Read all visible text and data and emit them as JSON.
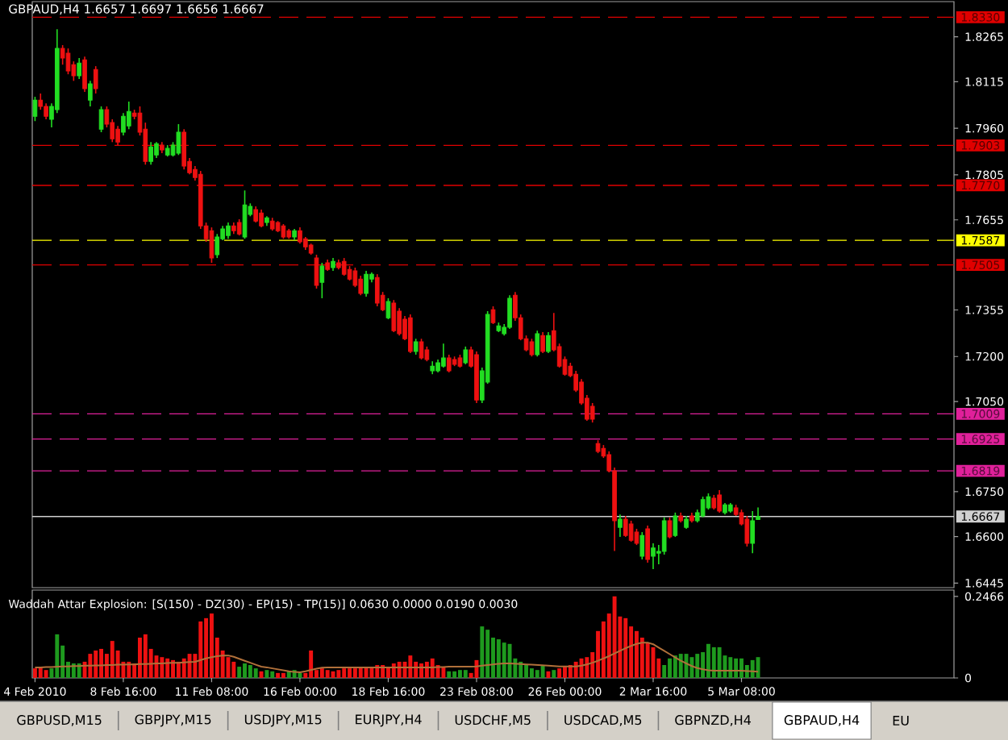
{
  "chart_data": [
    {
      "type": "candlestick",
      "title": "GBPAUD,H4 1.6657 1.6697 1.6656 1.6667",
      "categories": [
        null,
        null,
        null,
        null,
        null,
        null,
        null,
        null,
        null,
        null,
        null,
        null,
        null,
        null,
        null,
        null,
        null,
        null,
        null,
        null,
        null,
        null,
        null,
        null,
        null,
        null,
        null,
        null,
        null,
        null,
        null,
        null,
        null,
        null,
        null,
        null,
        null,
        null,
        null,
        null,
        null,
        null,
        null,
        null,
        null,
        null,
        null,
        null,
        null,
        null,
        null,
        null,
        null,
        null,
        null,
        null,
        null,
        null,
        null,
        null,
        null,
        null,
        null,
        null,
        null,
        null,
        null,
        null,
        null,
        null,
        null,
        null,
        null,
        null,
        null,
        null,
        null,
        null,
        null,
        null,
        null,
        null,
        null,
        null,
        null,
        null,
        null,
        null,
        null,
        null,
        null,
        null,
        null,
        null,
        null,
        null,
        null,
        null,
        null,
        null,
        null,
        null,
        null,
        null,
        null,
        null,
        null,
        null,
        null,
        null,
        null,
        null,
        null,
        null,
        null,
        null,
        null,
        null,
        null,
        null,
        null,
        null,
        null,
        null,
        null,
        null,
        null,
        null,
        null,
        null,
        null,
        null,
        null,
        null,
        null,
        null,
        null,
        null,
        null,
        null,
        null,
        null,
        null,
        null,
        null,
        null,
        null,
        null,
        null,
        null,
        null,
        null,
        null,
        null,
        null,
        null,
        null,
        null,
        null,
        null,
        null,
        null,
        null,
        null,
        null,
        null,
        null
      ],
      "ohlc": [
        [
          1.8,
          1.8065,
          1.7984,
          1.8054
        ],
        [
          1.8054,
          1.8076,
          1.8022,
          1.8033
        ],
        [
          1.8033,
          1.8043,
          1.799,
          1.8
        ],
        [
          1.799,
          1.8043,
          1.7963,
          1.8033
        ],
        [
          1.8022,
          1.829,
          1.8011,
          1.8226
        ],
        [
          1.8226,
          1.8237,
          1.8172,
          1.8194
        ],
        [
          1.821,
          1.8226,
          1.814,
          1.8151
        ],
        [
          1.8172,
          1.8183,
          1.8118,
          1.8135
        ],
        [
          1.8135,
          1.8194,
          1.8124,
          1.8177
        ],
        [
          1.8188,
          1.8199,
          1.8081,
          1.8092
        ],
        [
          1.8054,
          1.8118,
          1.8033,
          1.8108
        ],
        [
          1.8156,
          1.8167,
          1.8076,
          1.8092
        ],
        [
          1.7957,
          1.8033,
          1.7947,
          1.8022
        ],
        [
          1.8022,
          1.8033,
          1.7963,
          1.7974
        ],
        [
          1.7979,
          1.799,
          1.7914,
          1.7925
        ],
        [
          1.7957,
          1.7968,
          1.7904,
          1.7914
        ],
        [
          1.7947,
          1.8011,
          1.7936,
          1.8
        ],
        [
          1.7968,
          1.8049,
          1.7957,
          1.8016
        ],
        [
          1.8011,
          1.8022,
          1.799,
          1.8
        ],
        [
          1.8011,
          1.8033,
          1.7936,
          1.7947
        ],
        [
          1.7957,
          1.7979,
          1.7839,
          1.785
        ],
        [
          1.785,
          1.7914,
          1.7839,
          1.7898
        ],
        [
          1.7871,
          1.7914,
          1.7861,
          1.7909
        ],
        [
          1.7904,
          1.7914,
          1.7877,
          1.7888
        ],
        [
          1.7871,
          1.7904,
          1.7866,
          1.7893
        ],
        [
          1.7871,
          1.7914,
          1.7866,
          1.7904
        ],
        [
          1.7877,
          1.7974,
          1.7871,
          1.7947
        ],
        [
          1.7947,
          1.7957,
          1.7823,
          1.7834
        ],
        [
          1.785,
          1.7861,
          1.7807,
          1.7812
        ],
        [
          1.7823,
          1.7834,
          1.7786,
          1.7796
        ],
        [
          1.7807,
          1.7818,
          1.7625,
          1.7635
        ],
        [
          1.7635,
          1.7646,
          1.7582,
          1.7592
        ],
        [
          1.7619,
          1.763,
          1.7512,
          1.7528
        ],
        [
          1.7539,
          1.7608,
          1.7528,
          1.7598
        ],
        [
          1.7592,
          1.7635,
          1.7587,
          1.7625
        ],
        [
          1.7603,
          1.7646,
          1.7592,
          1.7635
        ],
        [
          1.7635,
          1.7646,
          1.7608,
          1.7619
        ],
        [
          1.7646,
          1.7657,
          1.7603,
          1.7608
        ],
        [
          1.7598,
          1.7753,
          1.7592,
          1.7705
        ],
        [
          1.7673,
          1.771,
          1.7667,
          1.77
        ],
        [
          1.7689,
          1.77,
          1.7646,
          1.7651
        ],
        [
          1.7678,
          1.7689,
          1.763,
          1.7635
        ],
        [
          1.7646,
          1.7667,
          1.7635,
          1.7662
        ],
        [
          1.7651,
          1.7662,
          1.7619,
          1.7625
        ],
        [
          1.7646,
          1.7651,
          1.7614,
          1.7619
        ],
        [
          1.7635,
          1.7641,
          1.7592,
          1.7598
        ],
        [
          1.7619,
          1.7625,
          1.7592,
          1.7598
        ],
        [
          1.7598,
          1.7625,
          1.7587,
          1.7619
        ],
        [
          1.7619,
          1.763,
          1.7576,
          1.7582
        ],
        [
          1.7592,
          1.7598,
          1.7555,
          1.7565
        ],
        [
          1.7571,
          1.7576,
          1.7539,
          1.7544
        ],
        [
          1.7528,
          1.7539,
          1.7426,
          1.7437
        ],
        [
          1.7447,
          1.7512,
          1.7394,
          1.7501
        ],
        [
          1.7512,
          1.7523,
          1.7485,
          1.749
        ],
        [
          1.7496,
          1.7528,
          1.7485,
          1.7517
        ],
        [
          1.7512,
          1.7523,
          1.749,
          1.7496
        ],
        [
          1.7517,
          1.7528,
          1.7469,
          1.7474
        ],
        [
          1.749,
          1.7501,
          1.7453,
          1.7458
        ],
        [
          1.7485,
          1.7496,
          1.7431,
          1.7437
        ],
        [
          1.7458,
          1.7469,
          1.7404,
          1.741
        ],
        [
          1.741,
          1.7485,
          1.7399,
          1.7474
        ],
        [
          1.7458,
          1.748,
          1.7447,
          1.7474
        ],
        [
          1.7463,
          1.7474,
          1.7367,
          1.7378
        ],
        [
          1.7404,
          1.7415,
          1.7351,
          1.7356
        ],
        [
          1.7329,
          1.7394,
          1.7324,
          1.7383
        ],
        [
          1.7378,
          1.7388,
          1.7281,
          1.7286
        ],
        [
          1.7351,
          1.7361,
          1.727,
          1.7276
        ],
        [
          1.7324,
          1.7335,
          1.7254,
          1.7259
        ],
        [
          1.7329,
          1.734,
          1.7211,
          1.7217
        ],
        [
          1.7217,
          1.7259,
          1.7206,
          1.7249
        ],
        [
          1.7249,
          1.7259,
          1.719,
          1.7195
        ],
        [
          1.7222,
          1.7233,
          1.7184,
          1.719
        ],
        [
          1.7152,
          1.7184,
          1.7141,
          1.7168
        ],
        [
          1.7152,
          1.719,
          1.7147,
          1.7179
        ],
        [
          1.7168,
          1.7243,
          1.7163,
          1.7195
        ],
        [
          1.7195,
          1.7206,
          1.7147,
          1.7152
        ],
        [
          1.719,
          1.72,
          1.7168,
          1.7174
        ],
        [
          1.7195,
          1.7206,
          1.7163,
          1.7168
        ],
        [
          1.7179,
          1.7233,
          1.7174,
          1.7222
        ],
        [
          1.7222,
          1.7233,
          1.7163,
          1.7168
        ],
        [
          1.7206,
          1.7217,
          1.7045,
          1.7055
        ],
        [
          1.7055,
          1.7163,
          1.7045,
          1.7152
        ],
        [
          1.7115,
          1.7351,
          1.7109,
          1.734
        ],
        [
          1.7356,
          1.7367,
          1.7308,
          1.7313
        ],
        [
          1.7286,
          1.7313,
          1.7281,
          1.7302
        ],
        [
          1.7276,
          1.7308,
          1.727,
          1.7297
        ],
        [
          1.7297,
          1.7404,
          1.7292,
          1.7394
        ],
        [
          1.7404,
          1.7415,
          1.7319,
          1.7329
        ],
        [
          1.7329,
          1.734,
          1.7254,
          1.7259
        ],
        [
          1.7259,
          1.727,
          1.7217,
          1.7222
        ],
        [
          1.7249,
          1.7259,
          1.72,
          1.7206
        ],
        [
          1.7206,
          1.7286,
          1.72,
          1.7276
        ],
        [
          1.727,
          1.7281,
          1.7211,
          1.7217
        ],
        [
          1.7217,
          1.7281,
          1.7211,
          1.727
        ],
        [
          1.7286,
          1.7345,
          1.7217,
          1.7222
        ],
        [
          1.7233,
          1.7243,
          1.7163,
          1.7168
        ],
        [
          1.719,
          1.72,
          1.7136,
          1.7141
        ],
        [
          1.7168,
          1.7179,
          1.7131,
          1.7136
        ],
        [
          1.7141,
          1.7152,
          1.7082,
          1.7088
        ],
        [
          1.7115,
          1.7125,
          1.7039,
          1.7045
        ],
        [
          1.7061,
          1.7072,
          1.6986,
          1.6991
        ],
        [
          1.7034,
          1.7045,
          1.698,
          1.6991
        ],
        [
          1.691,
          1.6921,
          1.6878,
          1.6884
        ],
        [
          1.6894,
          1.6905,
          1.6862,
          1.6868
        ],
        [
          1.6873,
          1.6884,
          1.6814,
          1.6819
        ],
        [
          1.6819,
          1.683,
          1.6552,
          1.6653
        ],
        [
          1.6631,
          1.6674,
          1.6599,
          1.6658
        ],
        [
          1.6658,
          1.6669,
          1.6599,
          1.6604
        ],
        [
          1.6642,
          1.6653,
          1.6583,
          1.6588
        ],
        [
          1.6615,
          1.6626,
          1.6572,
          1.6578
        ],
        [
          1.6535,
          1.6615,
          1.6524,
          1.6604
        ],
        [
          1.6626,
          1.6637,
          1.6513,
          1.6524
        ],
        [
          1.6535,
          1.6578,
          1.6492,
          1.6562
        ],
        [
          1.6545,
          1.6572,
          1.6508,
          1.6551
        ],
        [
          1.6551,
          1.6664,
          1.654,
          1.6653
        ],
        [
          1.6653,
          1.6664,
          1.6594,
          1.6599
        ],
        [
          1.6604,
          1.668,
          1.6599,
          1.6669
        ],
        [
          1.6669,
          1.668,
          1.6647,
          1.6653
        ],
        [
          1.6631,
          1.6669,
          1.6626,
          1.6658
        ],
        [
          1.6669,
          1.668,
          1.6647,
          1.6653
        ],
        [
          1.6653,
          1.669,
          1.6647,
          1.668
        ],
        [
          1.6669,
          1.6733,
          1.6664,
          1.6723
        ],
        [
          1.6696,
          1.6744,
          1.669,
          1.6733
        ],
        [
          1.6728,
          1.6739,
          1.669,
          1.6696
        ],
        [
          1.6739,
          1.6755,
          1.668,
          1.6685
        ],
        [
          1.668,
          1.6712,
          1.6674,
          1.6706
        ],
        [
          1.6685,
          1.6712,
          1.668,
          1.6706
        ],
        [
          1.6696,
          1.6706,
          1.6669,
          1.6674
        ],
        [
          1.668,
          1.669,
          1.6637,
          1.6642
        ],
        [
          1.6658,
          1.6669,
          1.6567,
          1.6578
        ],
        [
          1.6578,
          1.6685,
          1.6545,
          1.6653
        ],
        [
          1.6657,
          1.6697,
          1.6656,
          1.6667
        ],
        null,
        null,
        null,
        null,
        null,
        null,
        null,
        null,
        null,
        null,
        null,
        null,
        null,
        null,
        null,
        null,
        null,
        null,
        null,
        null,
        null,
        null,
        null,
        null,
        null,
        null,
        null,
        null,
        null,
        null,
        null,
        null,
        null,
        null,
        null
      ],
      "colors": [
        "#22dd22",
        "#ee1111",
        "#ee1111",
        "#22dd22",
        "#22dd22",
        "#ee1111",
        "#ee1111",
        "#ee1111",
        "#22dd22",
        "#ee1111",
        "#22dd22",
        "#ee1111",
        "#22dd22",
        "#ee1111",
        "#ee1111",
        "#ee1111",
        "#22dd22",
        "#22dd22",
        "#ee1111",
        "#ee1111",
        "#ee1111",
        "#22dd22",
        "#22dd22",
        "#ee1111",
        "#22dd22",
        "#22dd22",
        "#22dd22",
        "#ee1111",
        "#ee1111",
        "#ee1111",
        "#ee1111",
        "#ee1111",
        "#ee1111",
        "#22dd22",
        "#22dd22",
        "#22dd22",
        "#ee1111",
        "#ee1111",
        "#22dd22",
        "#22dd22",
        "#ee1111",
        "#ee1111",
        "#22dd22",
        "#ee1111",
        "#ee1111",
        "#ee1111",
        "#ee1111",
        "#22dd22",
        "#ee1111",
        "#ee1111",
        "#ee1111",
        "#ee1111",
        "#22dd22",
        "#ee1111",
        "#22dd22",
        "#ee1111",
        "#ee1111",
        "#ee1111",
        "#ee1111",
        "#ee1111",
        "#22dd22",
        "#22dd22",
        "#ee1111",
        "#ee1111",
        "#22dd22",
        "#ee1111",
        "#ee1111",
        "#ee1111",
        "#ee1111",
        "#22dd22",
        "#ee1111",
        "#ee1111",
        "#22dd22",
        "#22dd22",
        "#22dd22",
        "#ee1111",
        "#ee1111",
        "#ee1111",
        "#22dd22",
        "#ee1111",
        "#ee1111",
        "#22dd22",
        "#22dd22",
        "#ee1111",
        "#22dd22",
        "#22dd22",
        "#22dd22",
        "#ee1111",
        "#ee1111",
        "#ee1111",
        "#ee1111",
        "#22dd22",
        "#ee1111",
        "#22dd22",
        "#ee1111",
        "#ee1111",
        "#ee1111",
        "#ee1111",
        "#ee1111",
        "#ee1111",
        "#ee1111",
        "#ee1111",
        "#ee1111",
        "#ee1111",
        "#ee1111",
        "#ee1111",
        "#22dd22",
        "#ee1111",
        "#ee1111",
        "#ee1111",
        "#22dd22",
        "#ee1111",
        "#22dd22",
        "#22dd22",
        "#22dd22",
        "#ee1111",
        "#22dd22",
        "#ee1111",
        "#22dd22",
        "#ee1111",
        "#22dd22",
        "#22dd22",
        "#22dd22",
        "#ee1111",
        "#ee1111",
        "#22dd22",
        "#22dd22",
        "#ee1111",
        "#ee1111",
        "#ee1111",
        "#22dd22",
        "#22dd22",
        null,
        null,
        null,
        null,
        null,
        null,
        null,
        null,
        null,
        null,
        null,
        null,
        null,
        null,
        null,
        null,
        null,
        null,
        null,
        null,
        null,
        null,
        null,
        null,
        null,
        null,
        null,
        null,
        null,
        null,
        null,
        null,
        null,
        null,
        null
      ],
      "ylim": [
        1.643,
        1.8382
      ],
      "yticks": [
        1.8265,
        1.8115,
        {
          "value": 1.796,
          "label": "1.7960"
        },
        1.7805,
        1.7655,
        1.7355,
        {
          "value": 1.72,
          "label": "1.7200"
        },
        {
          "value": 1.705,
          "label": "1.7050"
        },
        {
          "value": 1.675,
          "label": "1.6750"
        },
        {
          "value": 1.66,
          "label": "1.6600"
        },
        1.6445
      ],
      "tick_labels": "y",
      "ref_lines": [
        {
          "axis": "y",
          "value": 1.833,
          "label": "1.8330",
          "color": "#e00000",
          "line_style": "dashed"
        },
        {
          "axis": "y",
          "value": 1.7903,
          "label": "1.7903",
          "color": "#e00000",
          "line_style": "dashed"
        },
        {
          "axis": "y",
          "value": 1.777,
          "label": "1.7770",
          "color": "#e00000",
          "line_style": "dashed"
        },
        {
          "axis": "y",
          "value": 1.7587,
          "label": "1.7587",
          "color": "#ffff00",
          "line_style": "dashed"
        },
        {
          "axis": "y",
          "value": 1.7505,
          "label": "1.7505",
          "color": "#e00000",
          "line_style": "dashed"
        },
        {
          "axis": "y",
          "value": 1.7009,
          "label": "1.7009",
          "color": "#e0209a",
          "line_style": "dashed"
        },
        {
          "axis": "y",
          "value": 1.6925,
          "label": "1.6925",
          "color": "#e0209a",
          "line_style": "dashed"
        },
        {
          "axis": "y",
          "value": 1.6819,
          "label": "1.6819",
          "color": "#e0209a",
          "line_style": "dashed"
        },
        {
          "axis": "y",
          "value": 1.6667,
          "label": "1.6667",
          "color": "#d0d0d0",
          "line_style": "solid"
        }
      ]
    },
    {
      "type": "bar",
      "title": "Waddah Attar Explosion: [S(150) - DZ(30) - EP(15) - TP(15)] 0.0630 0.0000 0.0190 0.0030",
      "categories": [
        "4 Feb 2010",
        null,
        null,
        null,
        null,
        null,
        null,
        null,
        null,
        null,
        null,
        null,
        null,
        null,
        null,
        null,
        "8 Feb 16:00",
        null,
        null,
        null,
        null,
        null,
        null,
        null,
        null,
        null,
        null,
        null,
        null,
        null,
        null,
        null,
        "11 Feb 08:00",
        null,
        null,
        null,
        null,
        null,
        null,
        null,
        null,
        null,
        null,
        null,
        null,
        null,
        null,
        null,
        "16 Feb 00:00",
        null,
        null,
        null,
        null,
        null,
        null,
        null,
        null,
        null,
        null,
        null,
        null,
        null,
        null,
        null,
        "18 Feb 16:00",
        null,
        null,
        null,
        null,
        null,
        null,
        null,
        null,
        null,
        null,
        null,
        null,
        null,
        null,
        null,
        "23 Feb 08:00",
        null,
        null,
        null,
        null,
        null,
        null,
        null,
        null,
        null,
        null,
        null,
        null,
        null,
        null,
        null,
        "26 Feb 00:00",
        null,
        null,
        null,
        null,
        null,
        null,
        null,
        null,
        null,
        null,
        null,
        null,
        null,
        null,
        null,
        "2 Mar 16:00",
        null,
        null,
        null,
        null,
        null,
        null,
        null,
        null,
        null,
        null,
        null,
        null,
        null,
        null,
        null,
        "5 Mar 08:00",
        null,
        null,
        null,
        null,
        null,
        null,
        null,
        null,
        null,
        null,
        null,
        null,
        null,
        null,
        null,
        null,
        null,
        null,
        null,
        null,
        null,
        null,
        null,
        null,
        null,
        null,
        null,
        null,
        null,
        null,
        null,
        null,
        null,
        null,
        null,
        null,
        null,
        null
      ],
      "series": [
        {
          "color": "#1e9a1e",
          "values": [
            null,
            null,
            null,
            0.029,
            0.132,
            0.098,
            0.049,
            0.044,
            0.044,
            null,
            null,
            null,
            null,
            null,
            null,
            null,
            null,
            null,
            null,
            null,
            null,
            null,
            null,
            null,
            null,
            null,
            null,
            null,
            null,
            null,
            null,
            null,
            null,
            null,
            null,
            null,
            null,
            0.034,
            0.044,
            0.039,
            0.029,
            null,
            0.024,
            0.02,
            null,
            null,
            0.02,
            0.024,
            0.015,
            null,
            null,
            null,
            null,
            null,
            null,
            null,
            null,
            null,
            null,
            null,
            null,
            null,
            null,
            null,
            null,
            null,
            null,
            null,
            null,
            null,
            null,
            null,
            null,
            null,
            null,
            0.02,
            0.02,
            0.024,
            0.024,
            null,
            null,
            0.156,
            0.146,
            0.122,
            0.117,
            0.107,
            0.103,
            0.059,
            0.049,
            0.039,
            0.029,
            0.024,
            0.039,
            null,
            0.024,
            null,
            null,
            null,
            null,
            null,
            null,
            null,
            null,
            null,
            null,
            null,
            null,
            null,
            null,
            null,
            null,
            null,
            null,
            null,
            0.039,
            0.059,
            0.068,
            0.073,
            0.073,
            0.063,
            0.073,
            0.078,
            0.103,
            0.093,
            0.093,
            0.068,
            0.063,
            0.059,
            0.059,
            0.039,
            0.054,
            0.063,
            null,
            null,
            null,
            null,
            null,
            null,
            null,
            null,
            null,
            null,
            null,
            null,
            null,
            null,
            null,
            null,
            null,
            null,
            null,
            null,
            null,
            null,
            null,
            null,
            null,
            null,
            null,
            null,
            null,
            null,
            null,
            null,
            null,
            null,
            null
          ]
        },
        {
          "color": "#ee1111",
          "values": [
            0.029,
            0.034,
            0.024,
            null,
            null,
            null,
            null,
            null,
            null,
            0.049,
            0.073,
            0.083,
            0.088,
            0.073,
            0.112,
            0.083,
            0.049,
            0.049,
            0.044,
            0.122,
            0.132,
            0.088,
            0.068,
            0.063,
            0.059,
            0.054,
            0.049,
            0.059,
            0.073,
            0.073,
            0.171,
            0.181,
            0.195,
            0.122,
            0.083,
            0.063,
            0.049,
            null,
            null,
            null,
            null,
            0.02,
            null,
            null,
            0.015,
            0.015,
            null,
            null,
            null,
            0.015,
            0.083,
            0.024,
            0.029,
            0.024,
            0.02,
            0.024,
            0.029,
            0.029,
            0.029,
            0.034,
            0.034,
            0.034,
            0.039,
            0.039,
            0.034,
            0.044,
            0.049,
            0.049,
            0.068,
            0.049,
            0.044,
            0.049,
            0.059,
            0.039,
            0.034,
            null,
            null,
            null,
            null,
            0.015,
            0.054,
            null,
            null,
            null,
            null,
            null,
            null,
            null,
            null,
            null,
            null,
            null,
            null,
            0.02,
            null,
            0.029,
            0.034,
            0.039,
            0.049,
            0.059,
            0.063,
            0.078,
            0.142,
            0.171,
            0.195,
            0.247,
            0.186,
            0.181,
            0.156,
            0.142,
            0.122,
            0.107,
            0.093,
            0.059,
            null,
            null,
            null,
            null,
            null,
            null,
            null,
            null,
            null,
            null,
            null,
            null,
            null,
            null,
            null,
            null,
            null,
            null,
            null,
            null,
            null,
            null,
            null,
            null,
            null,
            null,
            null,
            null,
            null,
            null,
            null,
            null,
            null,
            null,
            null,
            null,
            null,
            null,
            null,
            null,
            null,
            null,
            null,
            null,
            null,
            null,
            null,
            null,
            null,
            null,
            null,
            null,
            null
          ]
        },
        {
          "type": "line",
          "color": "#b0703a",
          "values": [
            0.032,
            0.032,
            0.033,
            0.033,
            0.034,
            0.035,
            0.035,
            0.036,
            0.036,
            0.037,
            0.037,
            0.038,
            0.038,
            0.039,
            0.039,
            0.04,
            0.04,
            0.041,
            0.041,
            0.042,
            0.042,
            0.043,
            0.044,
            0.044,
            0.045,
            0.046,
            0.046,
            0.047,
            0.048,
            0.049,
            0.054,
            0.059,
            0.063,
            0.066,
            0.068,
            0.068,
            0.064,
            0.058,
            0.052,
            0.046,
            0.04,
            0.034,
            0.032,
            0.029,
            0.026,
            0.023,
            0.02,
            0.018,
            0.017,
            0.02,
            0.024,
            0.028,
            0.031,
            0.032,
            0.032,
            0.032,
            0.032,
            0.032,
            0.032,
            0.032,
            0.032,
            0.032,
            0.032,
            0.032,
            0.032,
            0.032,
            0.032,
            0.032,
            0.032,
            0.032,
            0.032,
            0.032,
            0.032,
            0.033,
            0.033,
            0.034,
            0.034,
            0.034,
            0.034,
            0.034,
            0.035,
            0.037,
            0.039,
            0.041,
            0.043,
            0.044,
            0.044,
            0.043,
            0.042,
            0.041,
            0.04,
            0.039,
            0.038,
            0.037,
            0.036,
            0.035,
            0.035,
            0.035,
            0.035,
            0.037,
            0.041,
            0.046,
            0.052,
            0.059,
            0.066,
            0.074,
            0.082,
            0.09,
            0.097,
            0.103,
            0.107,
            0.107,
            0.102,
            0.092,
            0.082,
            0.072,
            0.062,
            0.052,
            0.044,
            0.036,
            0.03,
            0.026,
            0.023,
            0.022,
            0.022,
            0.022,
            0.022,
            0.022,
            0.022,
            0.021,
            0.02,
            0.019,
            null,
            null,
            null,
            null,
            null,
            null,
            null,
            null,
            null,
            null,
            null,
            null,
            null,
            null,
            null,
            null,
            null,
            null,
            null,
            null,
            null,
            null,
            null,
            null,
            null,
            null,
            null,
            null,
            null,
            null,
            null,
            null,
            null,
            null,
            null
          ]
        }
      ],
      "ylim": [
        0,
        0.266
      ],
      "yticks": [
        0,
        0.2466
      ]
    },
    {
      "type": "other",
      "annotations": [
        "GBPUSD,M15",
        "GBPJPY,M15",
        "USDJPY,M15",
        "EURJPY,H4",
        "USDCHF,M5",
        "USDCAD,M5",
        "GBPNZD,H4",
        "GBPAUD,H4",
        "EU"
      ]
    }
  ]
}
